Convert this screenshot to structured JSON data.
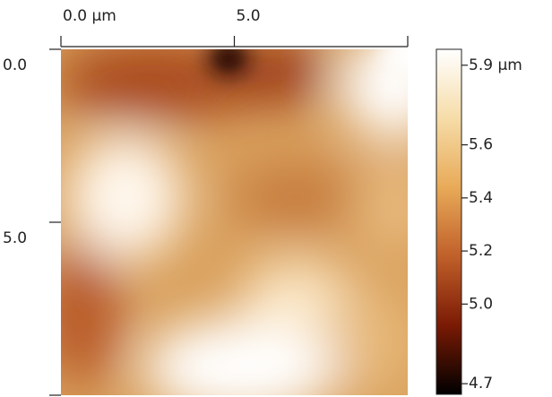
{
  "chart_data": {
    "type": "image",
    "xlim": [
      0,
      10
    ],
    "ylim": [
      0,
      10
    ],
    "xticks": [
      {
        "value": 0,
        "label": "0.0 µm"
      },
      {
        "value": 5,
        "label": "5.0"
      }
    ],
    "yticks": [
      {
        "value": 0,
        "label": "0.0"
      },
      {
        "value": 5,
        "label": "5.0"
      }
    ],
    "colorbar": {
      "lim": [
        4.66,
        5.96
      ],
      "ticks": [
        {
          "value": 5.9,
          "label": "5.9 µm"
        },
        5.6,
        5.4,
        5.2,
        {
          "value": 5.0,
          "label": "5.0"
        },
        4.7
      ],
      "colormap": [
        "#000000",
        "#7a1a04",
        "#c0602a",
        "#e8aa58",
        "#f6dca8",
        "#ffffff"
      ]
    }
  }
}
